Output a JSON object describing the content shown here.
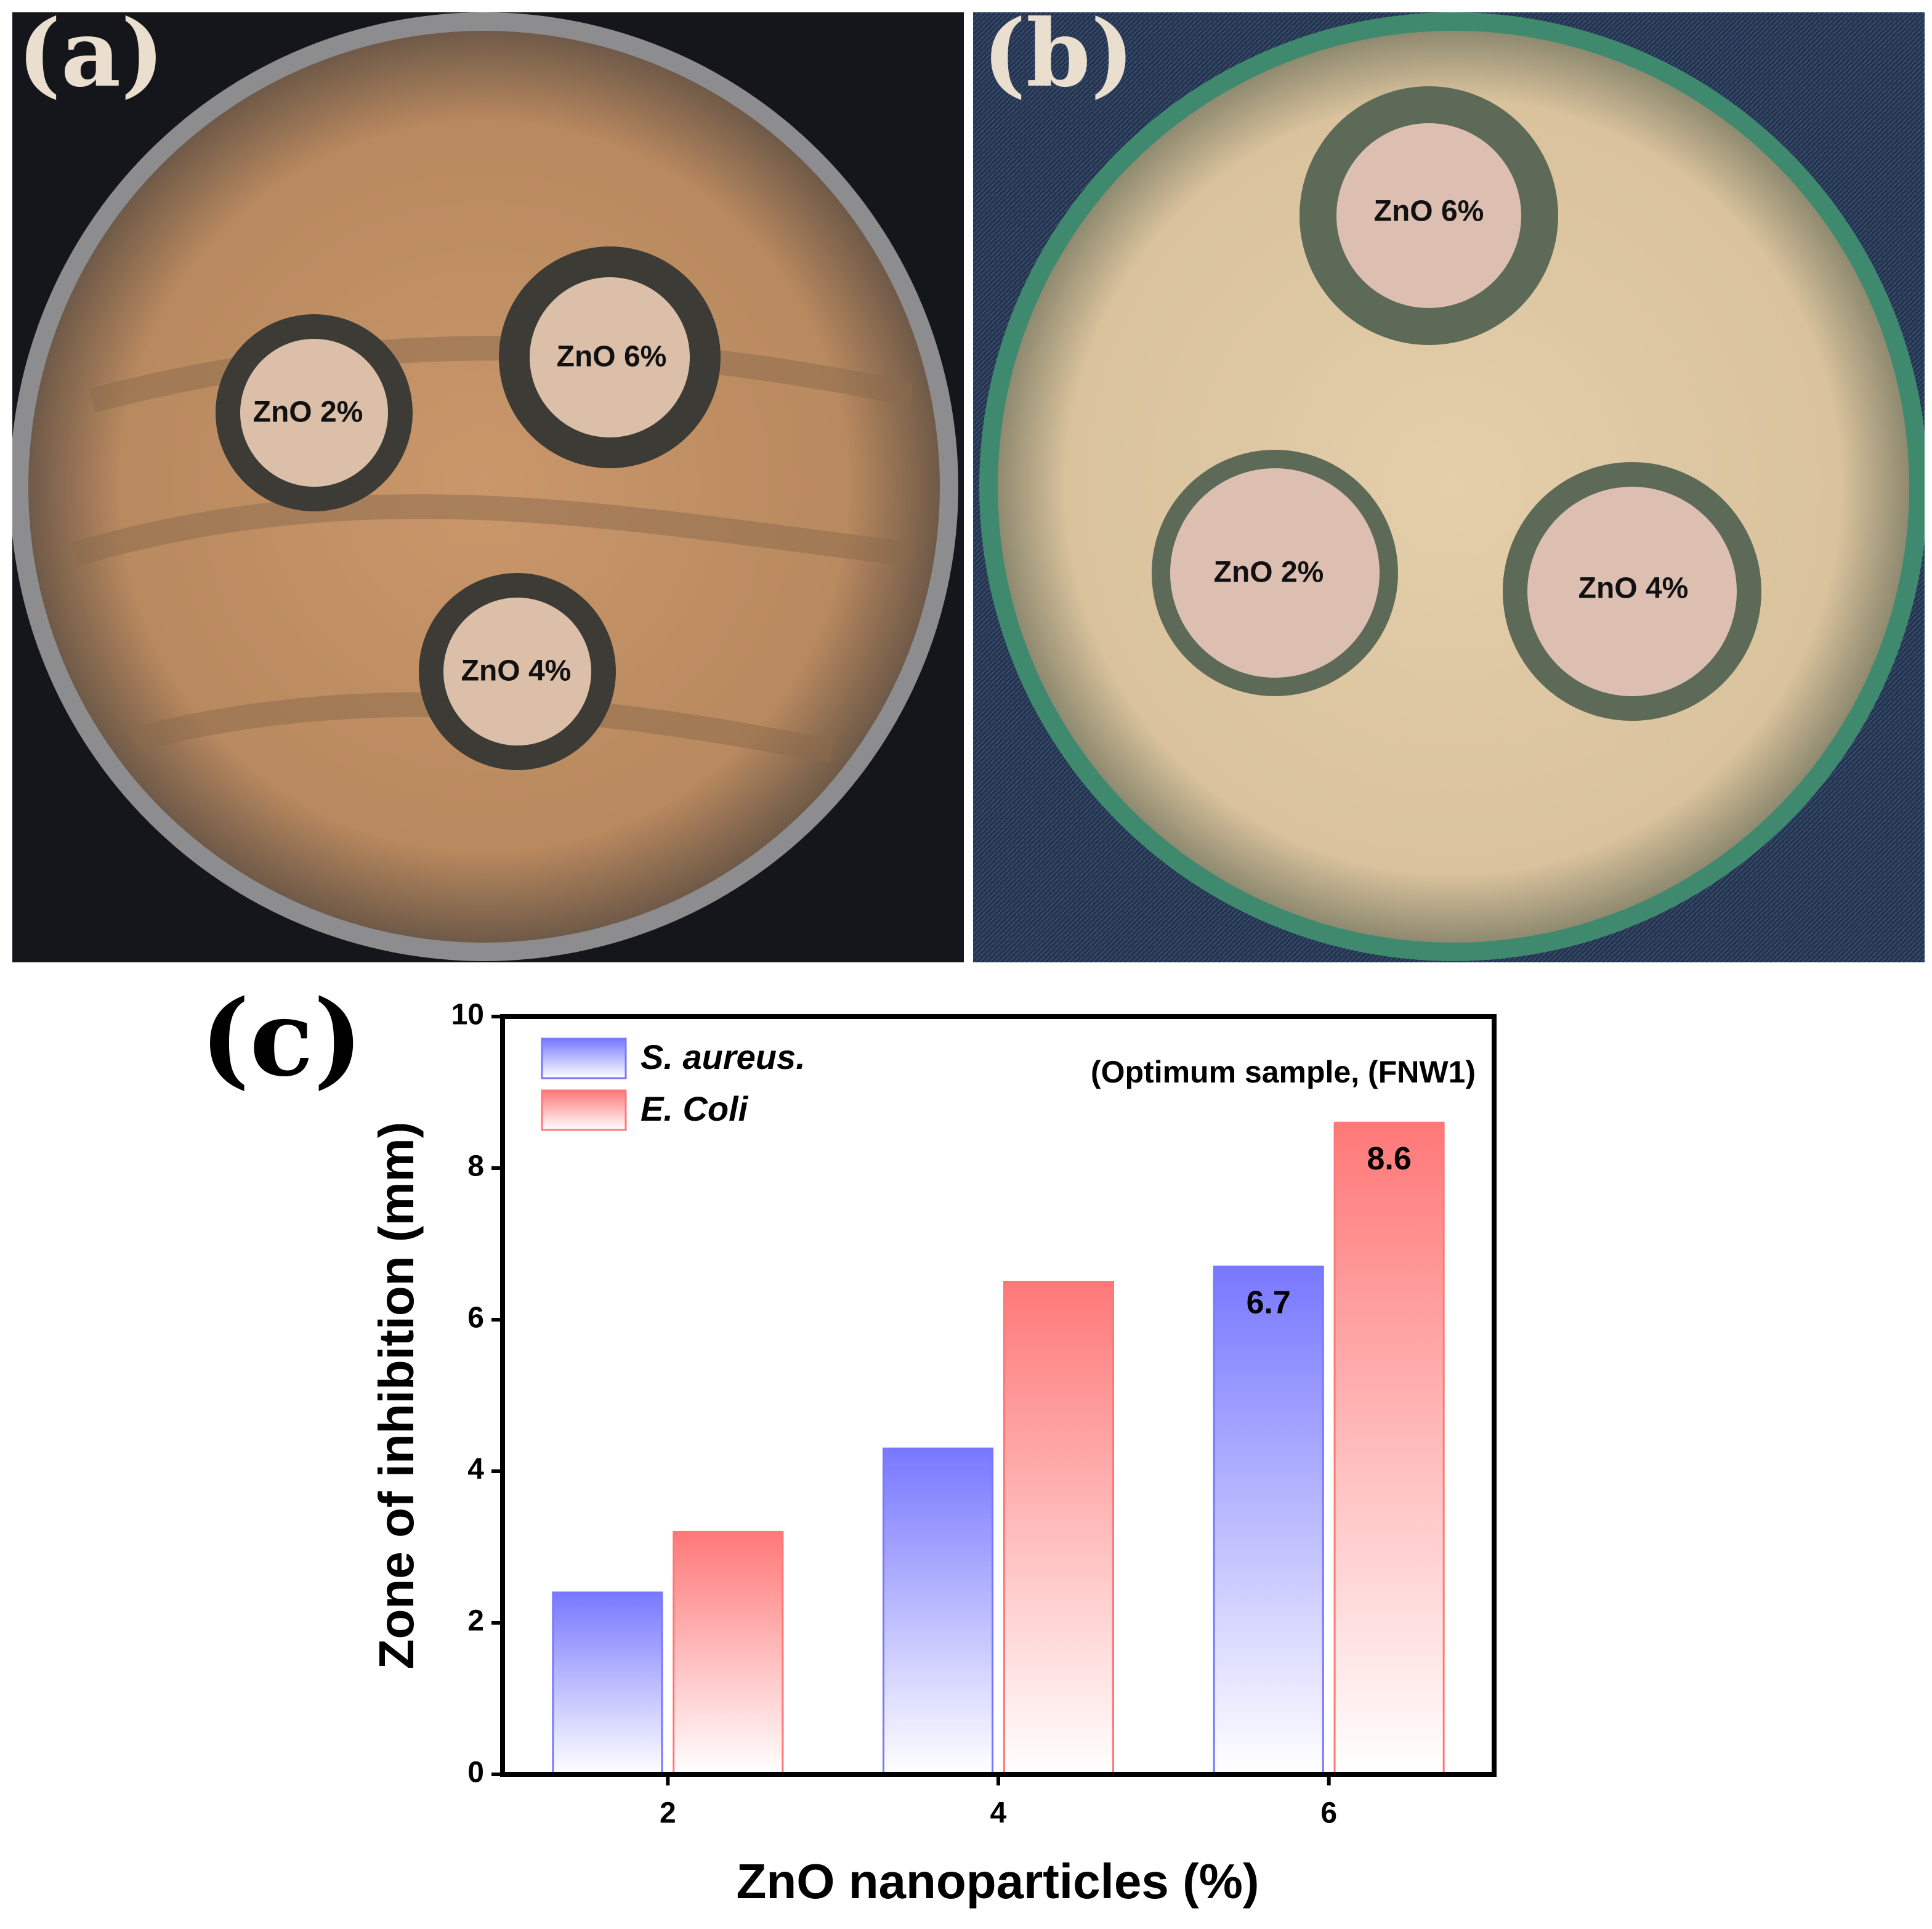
{
  "panels": [
    {
      "label": "(a)",
      "disks": [
        "ZnO 2%",
        "ZnO 6%",
        "ZnO 4%"
      ]
    },
    {
      "label": "(b)",
      "disks": [
        "ZnO 6%",
        "ZnO 2%",
        "ZnO 4%"
      ]
    }
  ],
  "chart_data": {
    "type": "bar",
    "panel_label": "(c)",
    "annotation": "(Optimum sample, (FNW1)",
    "x_label": "ZnO nanoparticles (%)",
    "y_label": "Zone of inhibition (mm)",
    "x": [
      2,
      4,
      6
    ],
    "xlim": [
      1,
      7
    ],
    "xticks": [
      2,
      4,
      6
    ],
    "ylim": [
      0,
      10
    ],
    "yticks": [
      0,
      2,
      4,
      6,
      8,
      10
    ],
    "legend": "upper left",
    "series": [
      {
        "name": "S. aureus.",
        "color": "#7878ff",
        "values": [
          2.4,
          4.3,
          6.7
        ],
        "value_labels": [
          null,
          null,
          "6.7"
        ]
      },
      {
        "name": "E. Coli",
        "color": "#ff7878",
        "values": [
          3.2,
          6.5,
          8.6
        ],
        "value_labels": [
          null,
          null,
          "8.6"
        ]
      }
    ]
  }
}
